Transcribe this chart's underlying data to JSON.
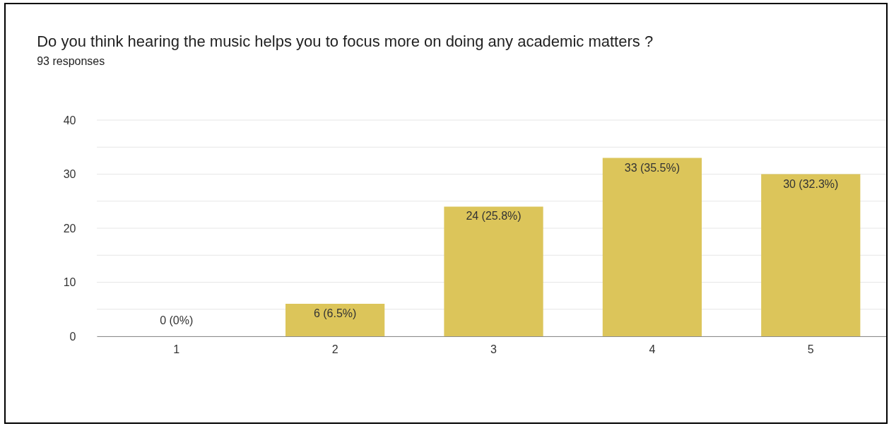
{
  "chart_data": {
    "type": "bar",
    "title": "Do you think hearing the music helps you to focus more on doing any academic matters ?",
    "subtitle": "93 responses",
    "categories": [
      "1",
      "2",
      "3",
      "4",
      "5"
    ],
    "values": [
      0,
      6,
      24,
      33,
      30
    ],
    "value_labels": [
      "0 (0%)",
      "6 (6.5%)",
      "24 (25.8%)",
      "33 (35.5%)",
      "30 (32.3%)"
    ],
    "color": "#dcc55a",
    "ylim": [
      0,
      40
    ],
    "yticks": [
      0,
      {
        "value": 5,
        "label": null
      },
      10,
      {
        "value": 15,
        "label": null
      },
      20,
      {
        "value": 25,
        "label": null
      },
      30,
      {
        "value": 35,
        "label": null
      },
      40
    ],
    "grid": "y"
  }
}
